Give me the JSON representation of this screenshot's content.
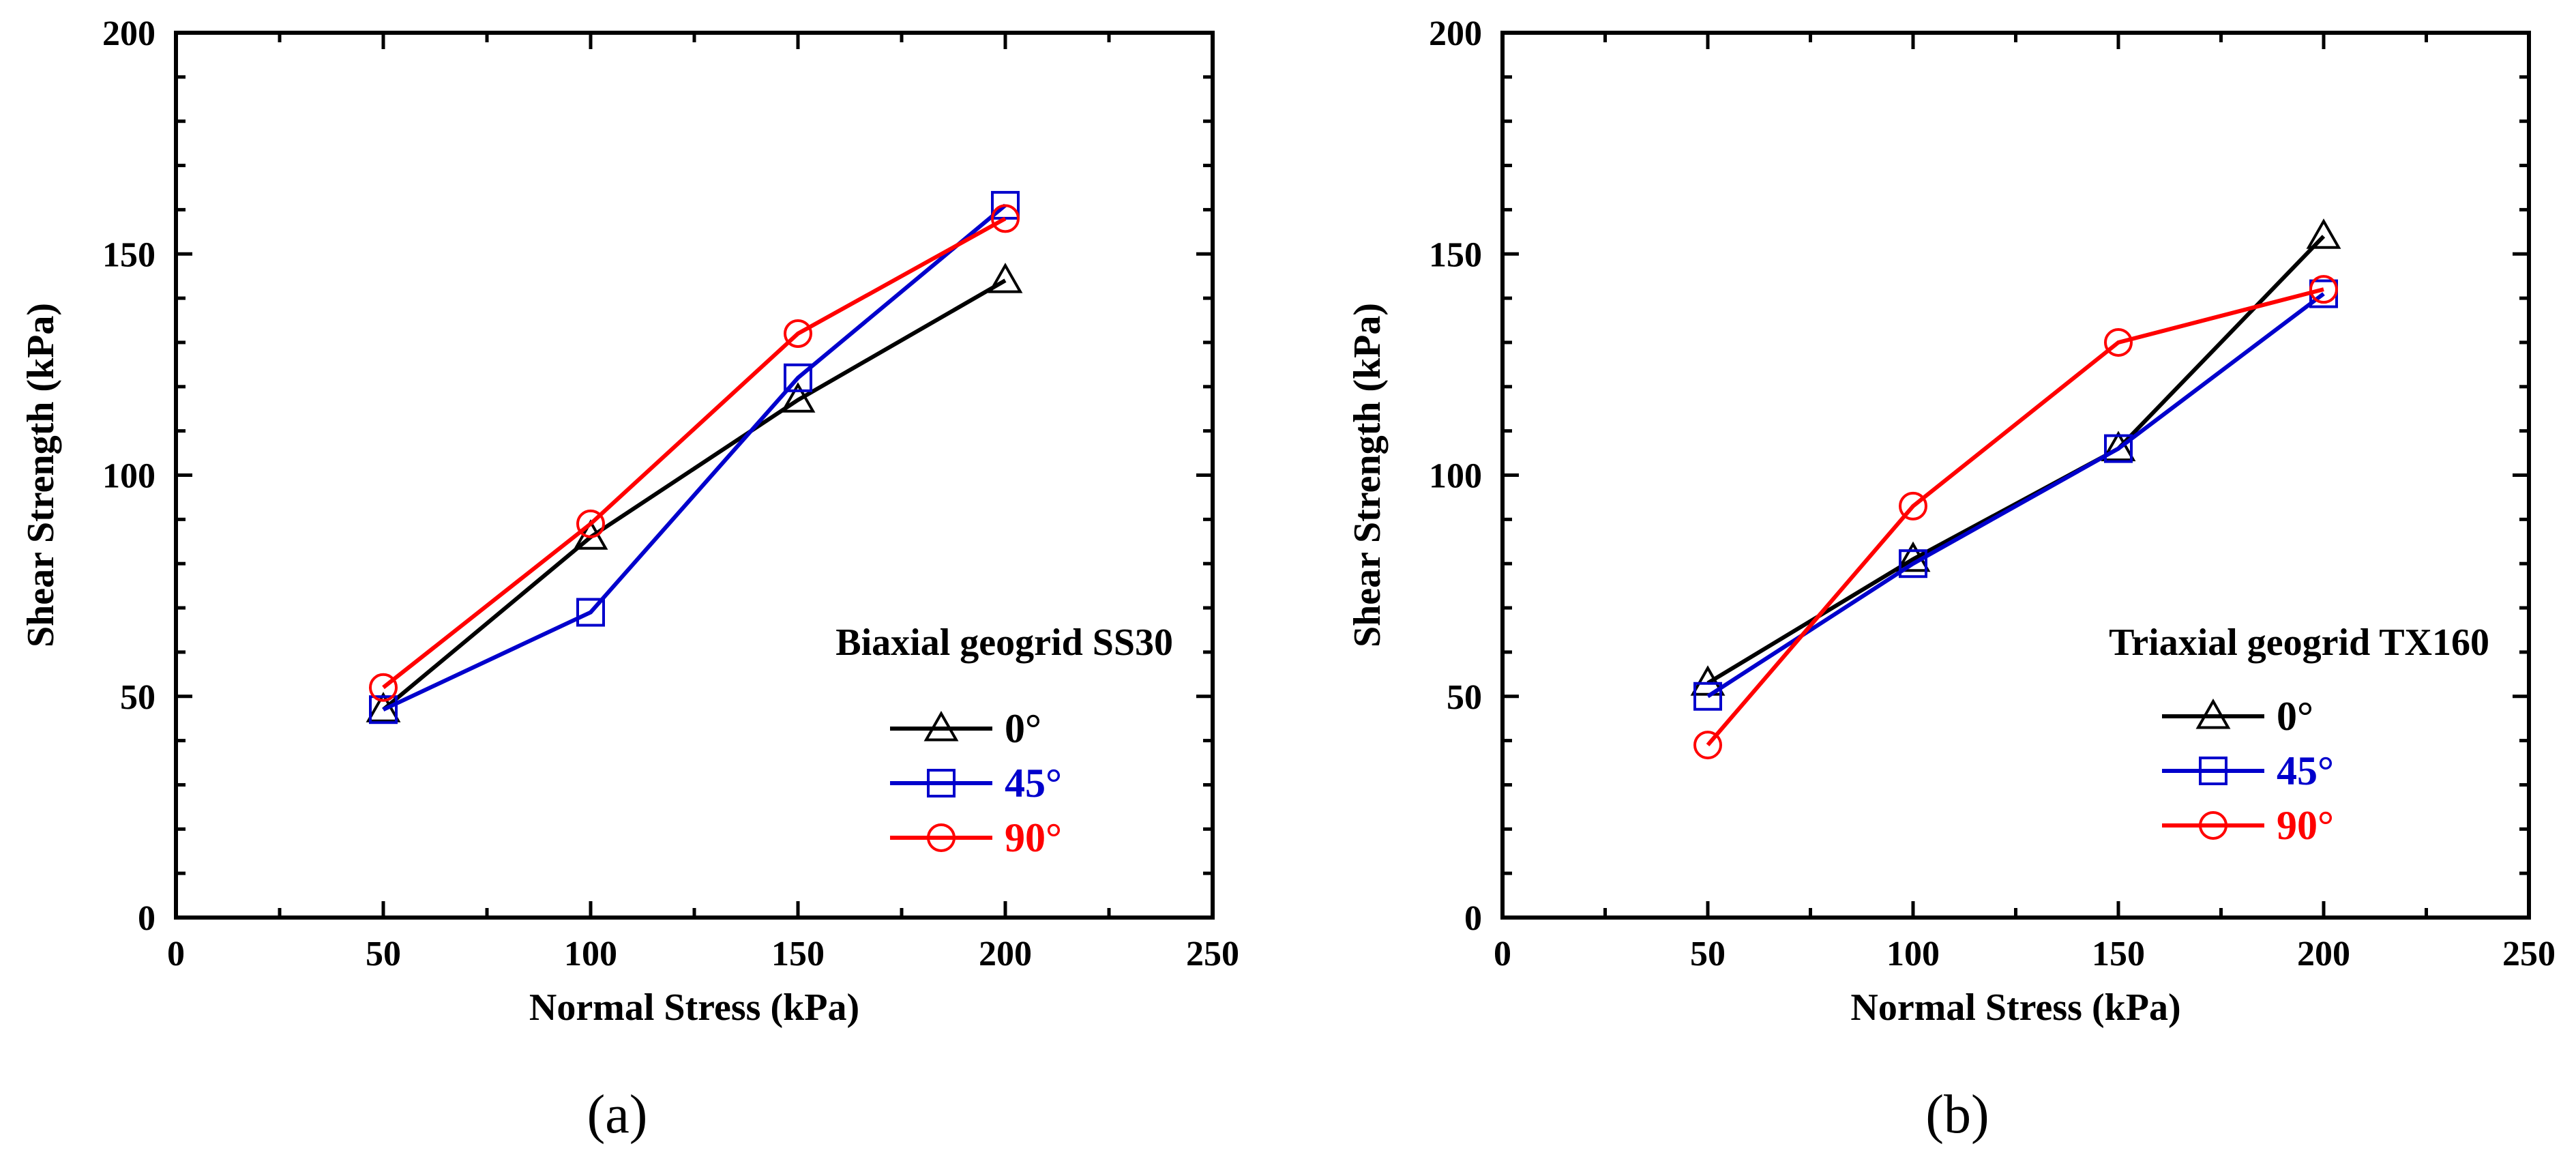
{
  "chart_data": [
    {
      "type": "line",
      "panel_label": "(a)",
      "title": "Biaxial geogrid SS30",
      "xlabel": "Normal Stress (kPa)",
      "ylabel": "Shear Strength (kPa)",
      "xlim": [
        0,
        250
      ],
      "ylim": [
        0,
        200
      ],
      "xticks": [
        0,
        50,
        100,
        150,
        200,
        250
      ],
      "yticks": [
        0,
        50,
        100,
        150,
        200
      ],
      "x": [
        50,
        100,
        150,
        200
      ],
      "legend_position": "bottom-right",
      "grid": false,
      "series": [
        {
          "name": "0°",
          "color": "#000000",
          "marker": "triangle",
          "values": [
            47,
            86,
            117,
            144
          ]
        },
        {
          "name": "45°",
          "color": "#0000CC",
          "marker": "square",
          "values": [
            47,
            69,
            122,
            161
          ]
        },
        {
          "name": "90°",
          "color": "#FF0000",
          "marker": "circle",
          "values": [
            52,
            89,
            132,
            158
          ]
        }
      ]
    },
    {
      "type": "line",
      "panel_label": "(b)",
      "title": "Triaxial geogrid TX160",
      "xlabel": "Normal Stress (kPa)",
      "ylabel": "Shear Strength (kPa)",
      "xlim": [
        0,
        250
      ],
      "ylim": [
        0,
        200
      ],
      "xticks": [
        0,
        50,
        100,
        150,
        200,
        250
      ],
      "yticks": [
        0,
        50,
        100,
        150,
        200
      ],
      "x": [
        50,
        100,
        150,
        200
      ],
      "legend_position": "bottom-right",
      "grid": false,
      "series": [
        {
          "name": "0°",
          "color": "#000000",
          "marker": "triangle",
          "values": [
            53,
            81,
            106,
            154
          ]
        },
        {
          "name": "45°",
          "color": "#0000CC",
          "marker": "square",
          "values": [
            50,
            80,
            106,
            141
          ]
        },
        {
          "name": "90°",
          "color": "#FF0000",
          "marker": "circle",
          "values": [
            39,
            93,
            130,
            142
          ]
        }
      ]
    }
  ]
}
